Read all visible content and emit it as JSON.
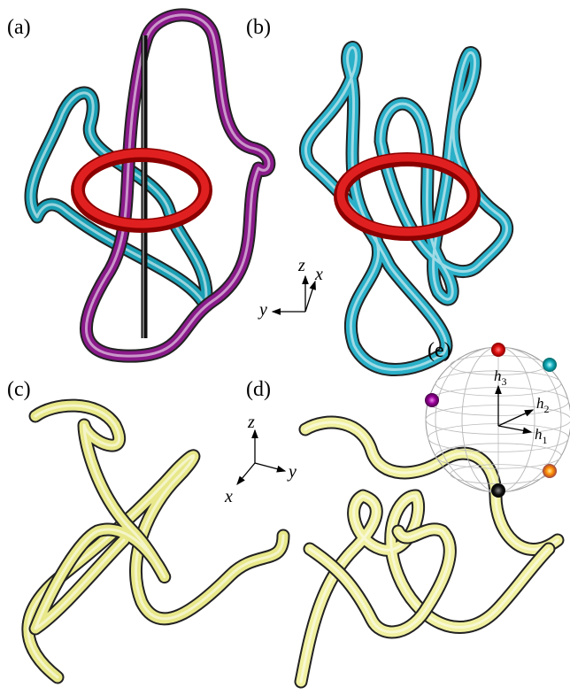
{
  "panels": {
    "a": "(a)",
    "b": "(b)",
    "c": "(c)",
    "d": "(d)",
    "e": "(e)"
  },
  "axes_top": {
    "z": "z",
    "x": "x",
    "y": "y"
  },
  "axes_bottom": {
    "z": "z",
    "y": "y",
    "x": "x"
  },
  "sphere_vectors": [
    {
      "symbol": "h",
      "subscript": "3"
    },
    {
      "symbol": "h",
      "subscript": "2"
    },
    {
      "symbol": "h",
      "subscript": "1"
    }
  ]
}
